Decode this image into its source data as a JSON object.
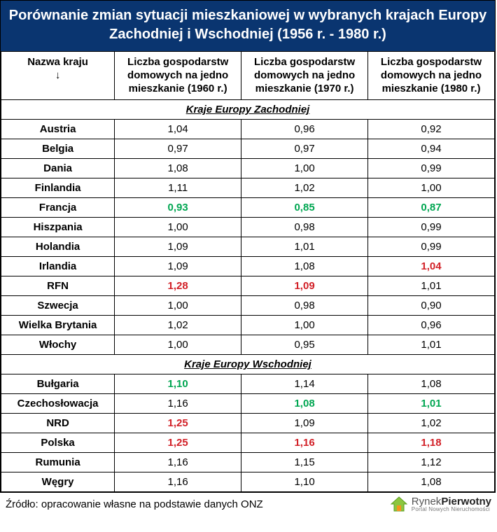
{
  "title": "Porównanie zmian sytuacji mieszkaniowej w wybranych krajach Europy Zachodniej i Wschodniej (1956 r. - 1980 r.)",
  "columns": {
    "c0_a": "Nazwa kraju",
    "c0_b": "↓",
    "c1": "Liczba gospodarstw domowych na jedno mieszkanie (1960 r.)",
    "c2": "Liczba gospodarstw domowych na jedno mieszkanie (1970 r.)",
    "c3": "Liczba gospodarstw domowych na jedno mieszkanie (1980 r.)"
  },
  "sections": [
    {
      "label": "Kraje Europy Zachodniej",
      "rows": [
        {
          "name": "Austria",
          "v": [
            "1,04",
            "0,96",
            "0,92"
          ],
          "hl": [
            "",
            "",
            ""
          ]
        },
        {
          "name": "Belgia",
          "v": [
            "0,97",
            "0,97",
            "0,94"
          ],
          "hl": [
            "",
            "",
            ""
          ]
        },
        {
          "name": "Dania",
          "v": [
            "1,08",
            "1,00",
            "0,99"
          ],
          "hl": [
            "",
            "",
            ""
          ]
        },
        {
          "name": "Finlandia",
          "v": [
            "1,11",
            "1,02",
            "1,00"
          ],
          "hl": [
            "",
            "",
            ""
          ]
        },
        {
          "name": "Francja",
          "v": [
            "0,93",
            "0,85",
            "0,87"
          ],
          "hl": [
            "green",
            "green",
            "green"
          ]
        },
        {
          "name": "Hiszpania",
          "v": [
            "1,00",
            "0,98",
            "0,99"
          ],
          "hl": [
            "",
            "",
            ""
          ]
        },
        {
          "name": "Holandia",
          "v": [
            "1,09",
            "1,01",
            "0,99"
          ],
          "hl": [
            "",
            "",
            ""
          ]
        },
        {
          "name": "Irlandia",
          "v": [
            "1,09",
            "1,08",
            "1,04"
          ],
          "hl": [
            "",
            "",
            "red"
          ]
        },
        {
          "name": "RFN",
          "v": [
            "1,28",
            "1,09",
            "1,01"
          ],
          "hl": [
            "red",
            "red",
            ""
          ]
        },
        {
          "name": "Szwecja",
          "v": [
            "1,00",
            "0,98",
            "0,90"
          ],
          "hl": [
            "",
            "",
            ""
          ]
        },
        {
          "name": "Wielka Brytania",
          "v": [
            "1,02",
            "1,00",
            "0,96"
          ],
          "hl": [
            "",
            "",
            ""
          ]
        },
        {
          "name": "Włochy",
          "v": [
            "1,00",
            "0,95",
            "1,01"
          ],
          "hl": [
            "",
            "",
            ""
          ]
        }
      ]
    },
    {
      "label": "Kraje Europy Wschodniej",
      "rows": [
        {
          "name": "Bułgaria",
          "v": [
            "1,10",
            "1,14",
            "1,08"
          ],
          "hl": [
            "green",
            "",
            ""
          ]
        },
        {
          "name": "Czechosłowacja",
          "v": [
            "1,16",
            "1,08",
            "1,01"
          ],
          "hl": [
            "",
            "green",
            "green"
          ]
        },
        {
          "name": "NRD",
          "v": [
            "1,25",
            "1,09",
            "1,02"
          ],
          "hl": [
            "red",
            "",
            ""
          ]
        },
        {
          "name": "Polska",
          "v": [
            "1,25",
            "1,16",
            "1,18"
          ],
          "hl": [
            "red",
            "red",
            "red"
          ]
        },
        {
          "name": "Rumunia",
          "v": [
            "1,16",
            "1,15",
            "1,12"
          ],
          "hl": [
            "",
            "",
            ""
          ]
        },
        {
          "name": "Węgry",
          "v": [
            "1,16",
            "1,10",
            "1,08"
          ],
          "hl": [
            "",
            "",
            ""
          ]
        }
      ]
    }
  ],
  "source": "Źródło: opracowanie własne na podstawie danych ONZ",
  "logo": {
    "name_a": "Rynek",
    "name_b": "Pierwotny",
    "sub": "Portal Nowych Nieruchomości"
  },
  "colors": {
    "header_bg": "#0a3570",
    "green": "#00a651",
    "red": "#d22027"
  }
}
